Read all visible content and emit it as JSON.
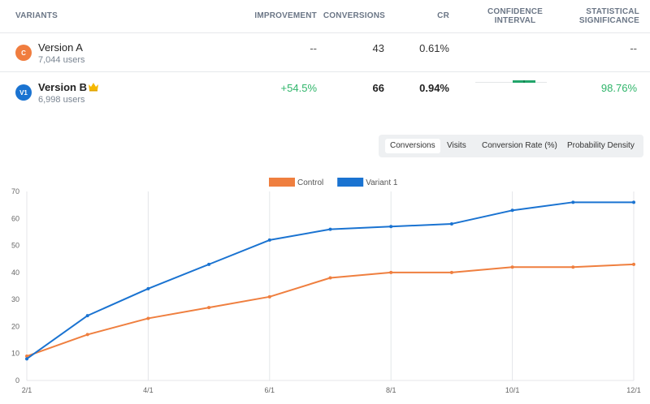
{
  "table": {
    "headers": {
      "variants": "VARIANTS",
      "improvement": "IMPROVEMENT",
      "conversions": "CONVERSIONS",
      "cr": "CR",
      "confidence_interval": [
        "CONFIDENCE",
        "INTERVAL"
      ],
      "statistical_significance": [
        "STATISTICAL",
        "SIGNIFICANCE"
      ]
    },
    "rows": [
      {
        "avatar": "C",
        "avatar_color": "#f07d3f",
        "name": "Version A",
        "users": "7,044 users",
        "improvement": "--",
        "conversions": "43",
        "cr": "0.61%",
        "significance": "--"
      },
      {
        "avatar": "V1",
        "avatar_color": "#1a73d1",
        "name": "Version B",
        "winner_icon": "crown-icon",
        "users": "6,998 users",
        "improvement": "+54.5%",
        "conversions": "66",
        "cr": "0.94%",
        "significance": "98.76%"
      }
    ]
  },
  "tabs": {
    "items": [
      "Conversions",
      "Visits",
      "Conversion Rate (%)",
      "Probability Density"
    ],
    "active": "Conversions"
  },
  "colors": {
    "control": "#ef7f3f",
    "variant": "#1a73d1",
    "positive": "#2fb56a",
    "ci_bar": "#22a56a"
  },
  "chart_data": {
    "type": "line",
    "title": "",
    "xlabel": "",
    "ylabel": "",
    "x_ticks": [
      "2/1",
      "4/1",
      "6/1",
      "8/1",
      "10/1",
      "12/1"
    ],
    "x_range": [
      0,
      10
    ],
    "ylim": [
      0,
      70
    ],
    "y_ticks": [
      0,
      10,
      20,
      30,
      40,
      50,
      60,
      70
    ],
    "grid": "vertical",
    "legend_position": "top",
    "series": [
      {
        "name": "Control",
        "color": "#ef7f3f",
        "x": [
          0,
          1,
          2,
          3,
          4,
          5,
          6,
          7,
          8,
          9,
          10
        ],
        "values": [
          9,
          17,
          23,
          27,
          31,
          38,
          40,
          40,
          42,
          42,
          43
        ]
      },
      {
        "name": "Variant 1",
        "color": "#1a73d1",
        "x": [
          0,
          1,
          2,
          3,
          4,
          5,
          6,
          7,
          8,
          9,
          10
        ],
        "values": [
          8,
          24,
          34,
          43,
          52,
          56,
          57,
          58,
          63,
          66,
          66
        ]
      }
    ]
  }
}
